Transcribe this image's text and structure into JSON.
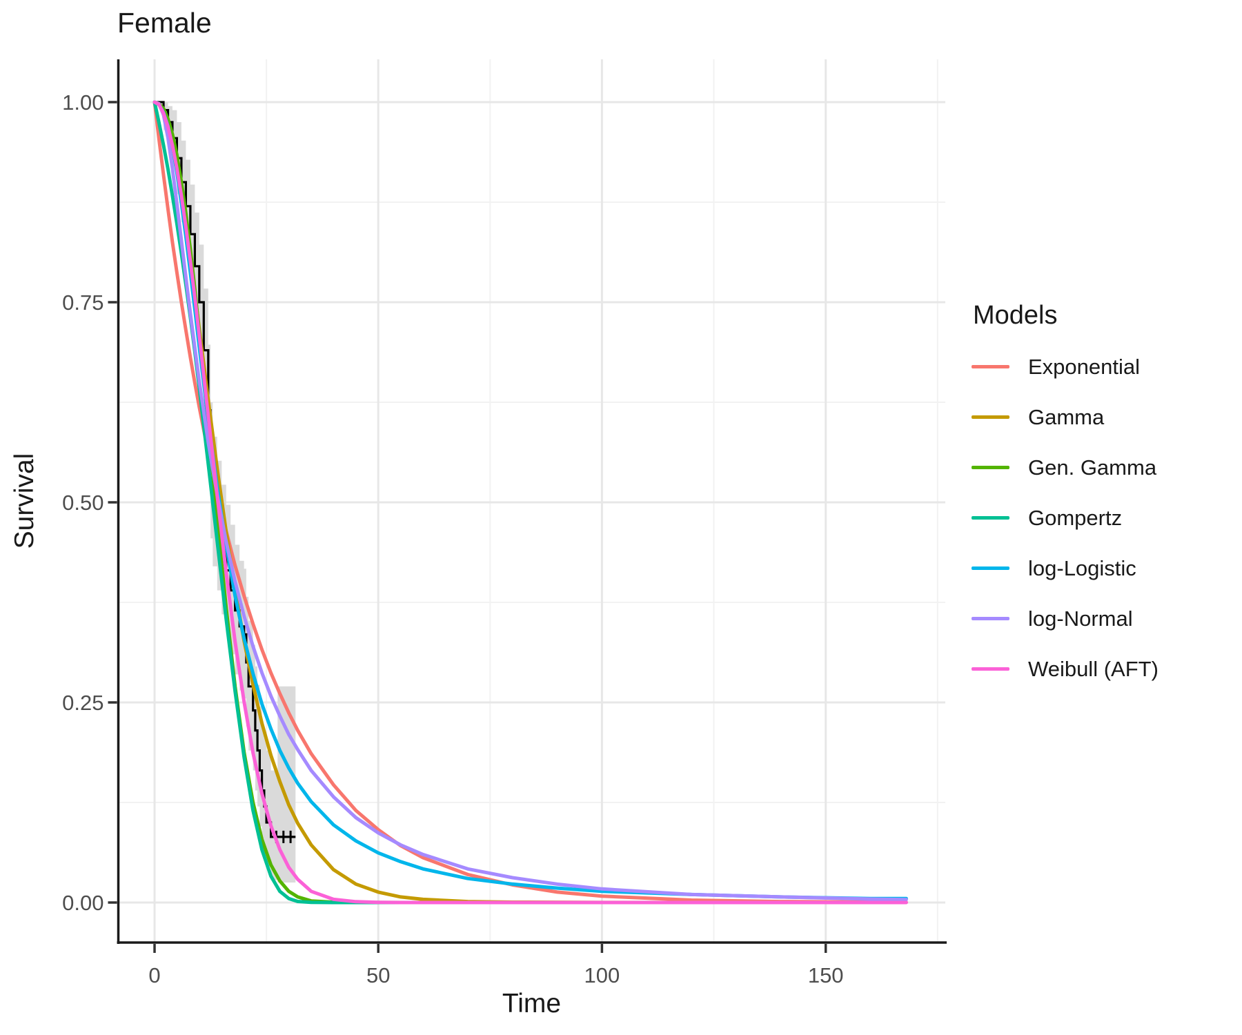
{
  "title": "Female",
  "axes": {
    "x": {
      "title": "Time",
      "tick_labels": [
        "0",
        "50",
        "100",
        "150"
      ],
      "tick_values": [
        0,
        50,
        100,
        150
      ],
      "minor_values": [
        25,
        75,
        125,
        175
      ],
      "range": [
        0,
        177
      ]
    },
    "y": {
      "title": "Survival",
      "tick_labels": [
        "0.00",
        "0.25",
        "0.50",
        "0.75",
        "1.00"
      ],
      "tick_values": [
        0,
        0.25,
        0.5,
        0.75,
        1
      ],
      "minor_values": [
        0.125,
        0.375,
        0.625,
        0.875
      ],
      "range": [
        0,
        1.05
      ]
    }
  },
  "legend": {
    "title": "Models",
    "items": [
      {
        "label": "Exponential",
        "color": "#F8766D"
      },
      {
        "label": "Gamma",
        "color": "#C49A00"
      },
      {
        "label": "Gen. Gamma",
        "color": "#53B400"
      },
      {
        "label": "Gompertz",
        "color": "#00C094"
      },
      {
        "label": "log-Logistic",
        "color": "#00B6EB"
      },
      {
        "label": "log-Normal",
        "color": "#A58AFF"
      },
      {
        "label": "Weibull (AFT)",
        "color": "#FB61D7"
      }
    ]
  },
  "colors": {
    "grid_major": "#E7E7E7",
    "grid_minor": "#F2F2F2",
    "axis_line": "#1a1a1a",
    "tick_label": "#4d4d4d",
    "ribbon": "#DADADA",
    "km_line": "#000000"
  },
  "chart_data": {
    "type": "line",
    "title": "Female",
    "xlabel": "Time",
    "ylabel": "Survival",
    "xlim": [
      0,
      177
    ],
    "ylim": [
      0,
      1.05
    ],
    "grid": "on",
    "legend_position": "right",
    "km": {
      "name": "Kaplan-Meier estimate",
      "color": "#000000",
      "steps": [
        [
          0,
          1.0
        ],
        [
          2,
          0.99
        ],
        [
          3,
          0.975
        ],
        [
          4,
          0.955
        ],
        [
          5,
          0.93
        ],
        [
          6,
          0.9
        ],
        [
          7,
          0.87
        ],
        [
          8,
          0.835
        ],
        [
          9,
          0.795
        ],
        [
          10,
          0.75
        ],
        [
          11,
          0.69
        ],
        [
          12,
          0.615
        ],
        [
          12.5,
          0.54
        ],
        [
          13,
          0.5
        ],
        [
          14,
          0.47
        ],
        [
          15,
          0.44
        ],
        [
          16,
          0.415
        ],
        [
          17,
          0.39
        ],
        [
          18,
          0.365
        ],
        [
          19,
          0.345
        ],
        [
          20,
          0.335
        ],
        [
          20.5,
          0.3
        ],
        [
          21,
          0.27
        ],
        [
          22,
          0.24
        ],
        [
          22.5,
          0.215
        ],
        [
          23,
          0.19
        ],
        [
          23.5,
          0.165
        ],
        [
          24,
          0.14
        ],
        [
          24.5,
          0.12
        ],
        [
          25,
          0.1
        ],
        [
          26,
          0.082
        ],
        [
          31.5,
          0.082
        ]
      ],
      "censor_times": [
        27.2,
        28.8,
        30.4
      ],
      "censor_survival": 0.082
    },
    "ribbon": {
      "name": "95% confidence interval",
      "color": "#DADADA",
      "points": [
        [
          0,
          1,
          1
        ],
        [
          2,
          0.965,
          1
        ],
        [
          3,
          0.945,
          0.995
        ],
        [
          4,
          0.92,
          0.99
        ],
        [
          5,
          0.885,
          0.975
        ],
        [
          6,
          0.85,
          0.952
        ],
        [
          7,
          0.815,
          0.928
        ],
        [
          8,
          0.775,
          0.897
        ],
        [
          9,
          0.73,
          0.862
        ],
        [
          10,
          0.68,
          0.822
        ],
        [
          11,
          0.615,
          0.767
        ],
        [
          12,
          0.535,
          0.697
        ],
        [
          12.5,
          0.455,
          0.625
        ],
        [
          13,
          0.42,
          0.582
        ],
        [
          14,
          0.39,
          0.552
        ],
        [
          15,
          0.36,
          0.522
        ],
        [
          16,
          0.335,
          0.497
        ],
        [
          17,
          0.31,
          0.472
        ],
        [
          18,
          0.285,
          0.447
        ],
        [
          19,
          0.265,
          0.427
        ],
        [
          20,
          0.255,
          0.417
        ],
        [
          20.5,
          0.22,
          0.382
        ],
        [
          21,
          0.19,
          0.352
        ],
        [
          22,
          0.165,
          0.322
        ],
        [
          22.5,
          0.14,
          0.295
        ],
        [
          23,
          0.12,
          0.272
        ],
        [
          23.5,
          0.095,
          0.245
        ],
        [
          24,
          0.075,
          0.222
        ],
        [
          24.5,
          0.06,
          0.205
        ],
        [
          25,
          0.05,
          0.19
        ],
        [
          26,
          0.028,
          0.165
        ],
        [
          27.5,
          0.025,
          0.27
        ],
        [
          31.5,
          0.025,
          0.27
        ]
      ]
    },
    "series": [
      {
        "name": "Exponential",
        "color": "#F8766D",
        "points": [
          [
            0,
            1
          ],
          [
            1,
            0.953
          ],
          [
            2,
            0.909
          ],
          [
            3,
            0.866
          ],
          [
            4,
            0.825
          ],
          [
            5,
            0.787
          ],
          [
            6,
            0.75
          ],
          [
            7,
            0.715
          ],
          [
            8,
            0.681
          ],
          [
            9,
            0.649
          ],
          [
            10,
            0.619
          ],
          [
            12,
            0.562
          ],
          [
            14,
            0.511
          ],
          [
            16,
            0.464
          ],
          [
            18,
            0.421
          ],
          [
            20,
            0.383
          ],
          [
            22,
            0.348
          ],
          [
            24,
            0.316
          ],
          [
            26,
            0.287
          ],
          [
            28,
            0.261
          ],
          [
            30,
            0.237
          ],
          [
            32,
            0.215
          ],
          [
            35,
            0.186
          ],
          [
            40,
            0.147
          ],
          [
            45,
            0.115
          ],
          [
            50,
            0.091
          ],
          [
            55,
            0.071
          ],
          [
            60,
            0.056
          ],
          [
            70,
            0.035
          ],
          [
            80,
            0.022
          ],
          [
            90,
            0.013
          ],
          [
            100,
            0.008
          ],
          [
            120,
            0.003
          ],
          [
            140,
            0.0012
          ],
          [
            160,
            0.0005
          ],
          [
            168,
            0.0003
          ]
        ]
      },
      {
        "name": "Gamma",
        "color": "#C49A00",
        "points": [
          [
            0,
            1
          ],
          [
            1,
            0.998
          ],
          [
            2,
            0.989
          ],
          [
            3,
            0.972
          ],
          [
            4,
            0.949
          ],
          [
            5,
            0.919
          ],
          [
            6,
            0.884
          ],
          [
            7,
            0.845
          ],
          [
            8,
            0.804
          ],
          [
            9,
            0.761
          ],
          [
            10,
            0.717
          ],
          [
            12,
            0.628
          ],
          [
            14,
            0.542
          ],
          [
            16,
            0.463
          ],
          [
            18,
            0.391
          ],
          [
            20,
            0.327
          ],
          [
            22,
            0.272
          ],
          [
            24,
            0.224
          ],
          [
            26,
            0.184
          ],
          [
            28,
            0.151
          ],
          [
            30,
            0.122
          ],
          [
            32,
            0.099
          ],
          [
            35,
            0.072
          ],
          [
            40,
            0.041
          ],
          [
            45,
            0.023
          ],
          [
            50,
            0.013
          ],
          [
            55,
            0.007
          ],
          [
            60,
            0.004
          ],
          [
            70,
            0.0012
          ],
          [
            80,
            0.0004
          ],
          [
            100,
            0.0001
          ],
          [
            125,
            0.0
          ]
        ]
      },
      {
        "name": "Gen. Gamma",
        "color": "#53B400",
        "points": [
          [
            0,
            1
          ],
          [
            1,
            0.998
          ],
          [
            2,
            0.992
          ],
          [
            3,
            0.979
          ],
          [
            4,
            0.96
          ],
          [
            5,
            0.934
          ],
          [
            6,
            0.9
          ],
          [
            7,
            0.861
          ],
          [
            8,
            0.816
          ],
          [
            9,
            0.766
          ],
          [
            10,
            0.712
          ],
          [
            12,
            0.597
          ],
          [
            14,
            0.479
          ],
          [
            16,
            0.368
          ],
          [
            18,
            0.27
          ],
          [
            20,
            0.188
          ],
          [
            22,
            0.125
          ],
          [
            24,
            0.079
          ],
          [
            26,
            0.047
          ],
          [
            28,
            0.027
          ],
          [
            30,
            0.014
          ],
          [
            32,
            0.007
          ],
          [
            35,
            0.002
          ],
          [
            40,
            0.0004
          ],
          [
            45,
            0.0001
          ],
          [
            60,
            0.0
          ],
          [
            80,
            0.0
          ]
        ]
      },
      {
        "name": "Gompertz",
        "color": "#00C094",
        "points": [
          [
            0,
            1
          ],
          [
            1,
            0.974
          ],
          [
            2,
            0.946
          ],
          [
            3,
            0.916
          ],
          [
            4,
            0.883
          ],
          [
            5,
            0.848
          ],
          [
            6,
            0.811
          ],
          [
            7,
            0.772
          ],
          [
            8,
            0.731
          ],
          [
            9,
            0.688
          ],
          [
            10,
            0.643
          ],
          [
            12,
            0.548
          ],
          [
            14,
            0.451
          ],
          [
            16,
            0.354
          ],
          [
            18,
            0.264
          ],
          [
            20,
            0.182
          ],
          [
            22,
            0.115
          ],
          [
            24,
            0.066
          ],
          [
            26,
            0.033
          ],
          [
            28,
            0.014
          ],
          [
            30,
            0.005
          ],
          [
            32,
            0.0013
          ],
          [
            35,
            0.0002
          ],
          [
            40,
            0.0
          ],
          [
            55,
            0.0
          ],
          [
            72,
            0.0
          ]
        ]
      },
      {
        "name": "log-Logistic",
        "color": "#00B6EB",
        "points": [
          [
            0,
            1
          ],
          [
            1,
            0.997
          ],
          [
            2,
            0.987
          ],
          [
            3,
            0.97
          ],
          [
            4,
            0.945
          ],
          [
            5,
            0.912
          ],
          [
            6,
            0.874
          ],
          [
            7,
            0.832
          ],
          [
            8,
            0.787
          ],
          [
            9,
            0.741
          ],
          [
            10,
            0.694
          ],
          [
            12,
            0.603
          ],
          [
            14,
            0.519
          ],
          [
            16,
            0.446
          ],
          [
            18,
            0.383
          ],
          [
            20,
            0.33
          ],
          [
            22,
            0.286
          ],
          [
            24,
            0.248
          ],
          [
            26,
            0.217
          ],
          [
            28,
            0.19
          ],
          [
            30,
            0.168
          ],
          [
            32,
            0.149
          ],
          [
            35,
            0.126
          ],
          [
            40,
            0.097
          ],
          [
            45,
            0.077
          ],
          [
            50,
            0.062
          ],
          [
            55,
            0.051
          ],
          [
            60,
            0.042
          ],
          [
            70,
            0.03
          ],
          [
            80,
            0.023
          ],
          [
            90,
            0.018
          ],
          [
            100,
            0.014
          ],
          [
            120,
            0.01
          ],
          [
            140,
            0.007
          ],
          [
            160,
            0.005
          ],
          [
            168,
            0.005
          ]
        ]
      },
      {
        "name": "log-Normal",
        "color": "#A58AFF",
        "points": [
          [
            0,
            1
          ],
          [
            1,
            0.998
          ],
          [
            2,
            0.984
          ],
          [
            3,
            0.955
          ],
          [
            4,
            0.917
          ],
          [
            5,
            0.873
          ],
          [
            6,
            0.827
          ],
          [
            7,
            0.781
          ],
          [
            8,
            0.736
          ],
          [
            9,
            0.693
          ],
          [
            10,
            0.651
          ],
          [
            12,
            0.575
          ],
          [
            14,
            0.509
          ],
          [
            16,
            0.451
          ],
          [
            18,
            0.401
          ],
          [
            20,
            0.358
          ],
          [
            22,
            0.32
          ],
          [
            24,
            0.287
          ],
          [
            26,
            0.258
          ],
          [
            28,
            0.233
          ],
          [
            30,
            0.21
          ],
          [
            32,
            0.191
          ],
          [
            35,
            0.165
          ],
          [
            40,
            0.132
          ],
          [
            45,
            0.106
          ],
          [
            50,
            0.087
          ],
          [
            55,
            0.072
          ],
          [
            60,
            0.06
          ],
          [
            70,
            0.042
          ],
          [
            80,
            0.031
          ],
          [
            90,
            0.023
          ],
          [
            100,
            0.017
          ],
          [
            120,
            0.01
          ],
          [
            140,
            0.007
          ],
          [
            160,
            0.0043
          ],
          [
            168,
            0.0037
          ]
        ]
      },
      {
        "name": "Weibull (AFT)",
        "color": "#FB61D7",
        "points": [
          [
            0,
            1
          ],
          [
            1,
            0.997
          ],
          [
            2,
            0.986
          ],
          [
            3,
            0.969
          ],
          [
            4,
            0.946
          ],
          [
            5,
            0.917
          ],
          [
            6,
            0.883
          ],
          [
            7,
            0.844
          ],
          [
            8,
            0.801
          ],
          [
            9,
            0.756
          ],
          [
            10,
            0.708
          ],
          [
            12,
            0.608
          ],
          [
            14,
            0.508
          ],
          [
            16,
            0.412
          ],
          [
            18,
            0.326
          ],
          [
            20,
            0.251
          ],
          [
            22,
            0.187
          ],
          [
            24,
            0.136
          ],
          [
            26,
            0.096
          ],
          [
            28,
            0.066
          ],
          [
            30,
            0.044
          ],
          [
            32,
            0.029
          ],
          [
            35,
            0.014
          ],
          [
            40,
            0.004
          ],
          [
            45,
            0.001
          ],
          [
            50,
            0.0003
          ],
          [
            55,
            0.0
          ],
          [
            100,
            0.0
          ],
          [
            168,
            0.0
          ]
        ]
      }
    ]
  }
}
